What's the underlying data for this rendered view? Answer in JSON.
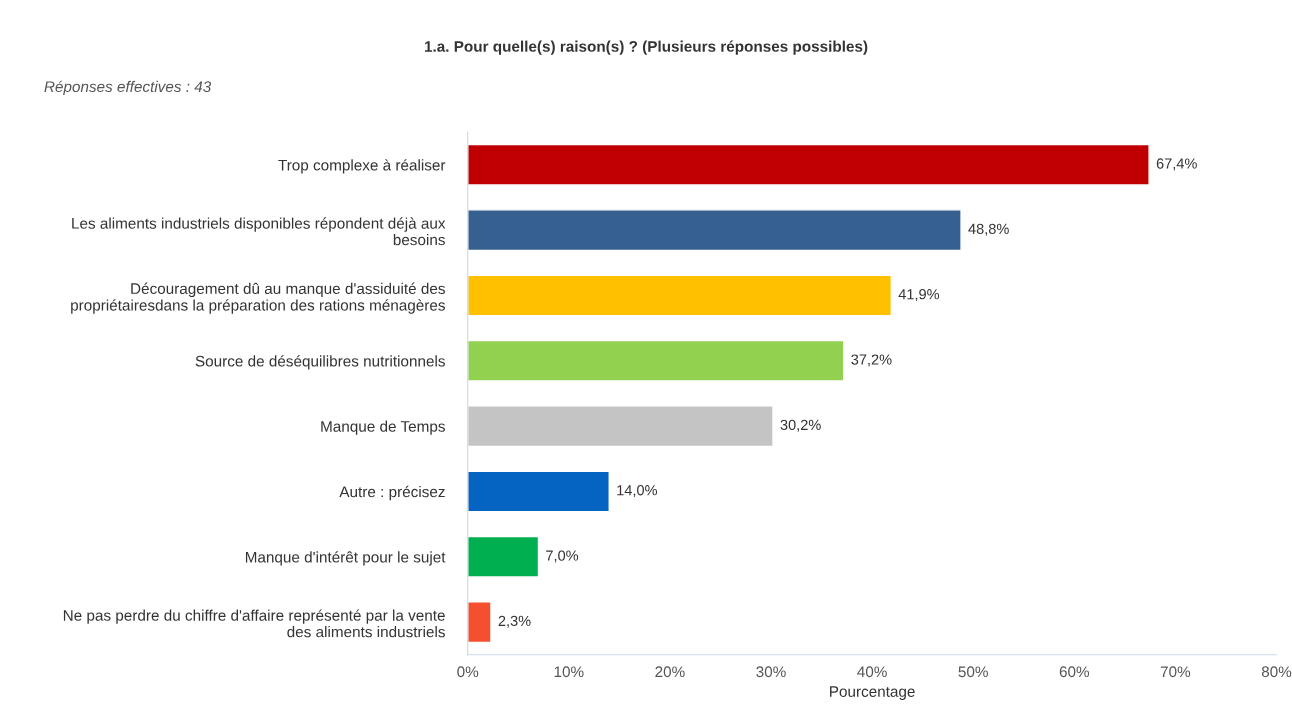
{
  "chart_data": {
    "type": "bar",
    "orientation": "horizontal",
    "title": "1.a. Pour quelle(s) raison(s) ? (Plusieurs réponses possibles)",
    "subtitle": "Réponses effectives : 43",
    "xlabel": "Pourcentage",
    "categories": [
      "Trop complexe à réaliser",
      "Les aliments industriels disponibles répondent déjà aux\nbesoins",
      "Découragement dû au manque d'assiduité des\npropriétairesdans la préparation des rations ménagères",
      "Source de déséquilibres nutritionnels",
      "Manque de Temps",
      "Autre : précisez",
      "Manque d'intérêt pour le sujet",
      "Ne pas perdre du chiffre d'affaire représenté par la vente\ndes aliments industriels"
    ],
    "values": [
      67.4,
      48.8,
      41.9,
      37.2,
      30.2,
      14.0,
      7.0,
      2.3
    ],
    "colors": [
      "#c00000",
      "#35608f",
      "#ffc000",
      "#92d050",
      "#c4c4c4",
      "#0563c1",
      "#00b050",
      "#f4502f"
    ],
    "value_labels": [
      "67,4%",
      "48,8%",
      "41,9%",
      "37,2%",
      "30,2%",
      "14,0%",
      "7,0%",
      "2,3%"
    ],
    "xlim": [
      0,
      80
    ],
    "xticks": [
      {
        "value": 0,
        "label": "0%"
      },
      {
        "value": 10,
        "label": "10%"
      },
      {
        "value": 20,
        "label": "20%"
      },
      {
        "value": 30,
        "label": "30%"
      },
      {
        "value": 40,
        "label": "40%"
      },
      {
        "value": 50,
        "label": "50%"
      },
      {
        "value": 60,
        "label": "60%"
      },
      {
        "value": 70,
        "label": "70%"
      },
      {
        "value": 80,
        "label": "80%"
      }
    ]
  }
}
